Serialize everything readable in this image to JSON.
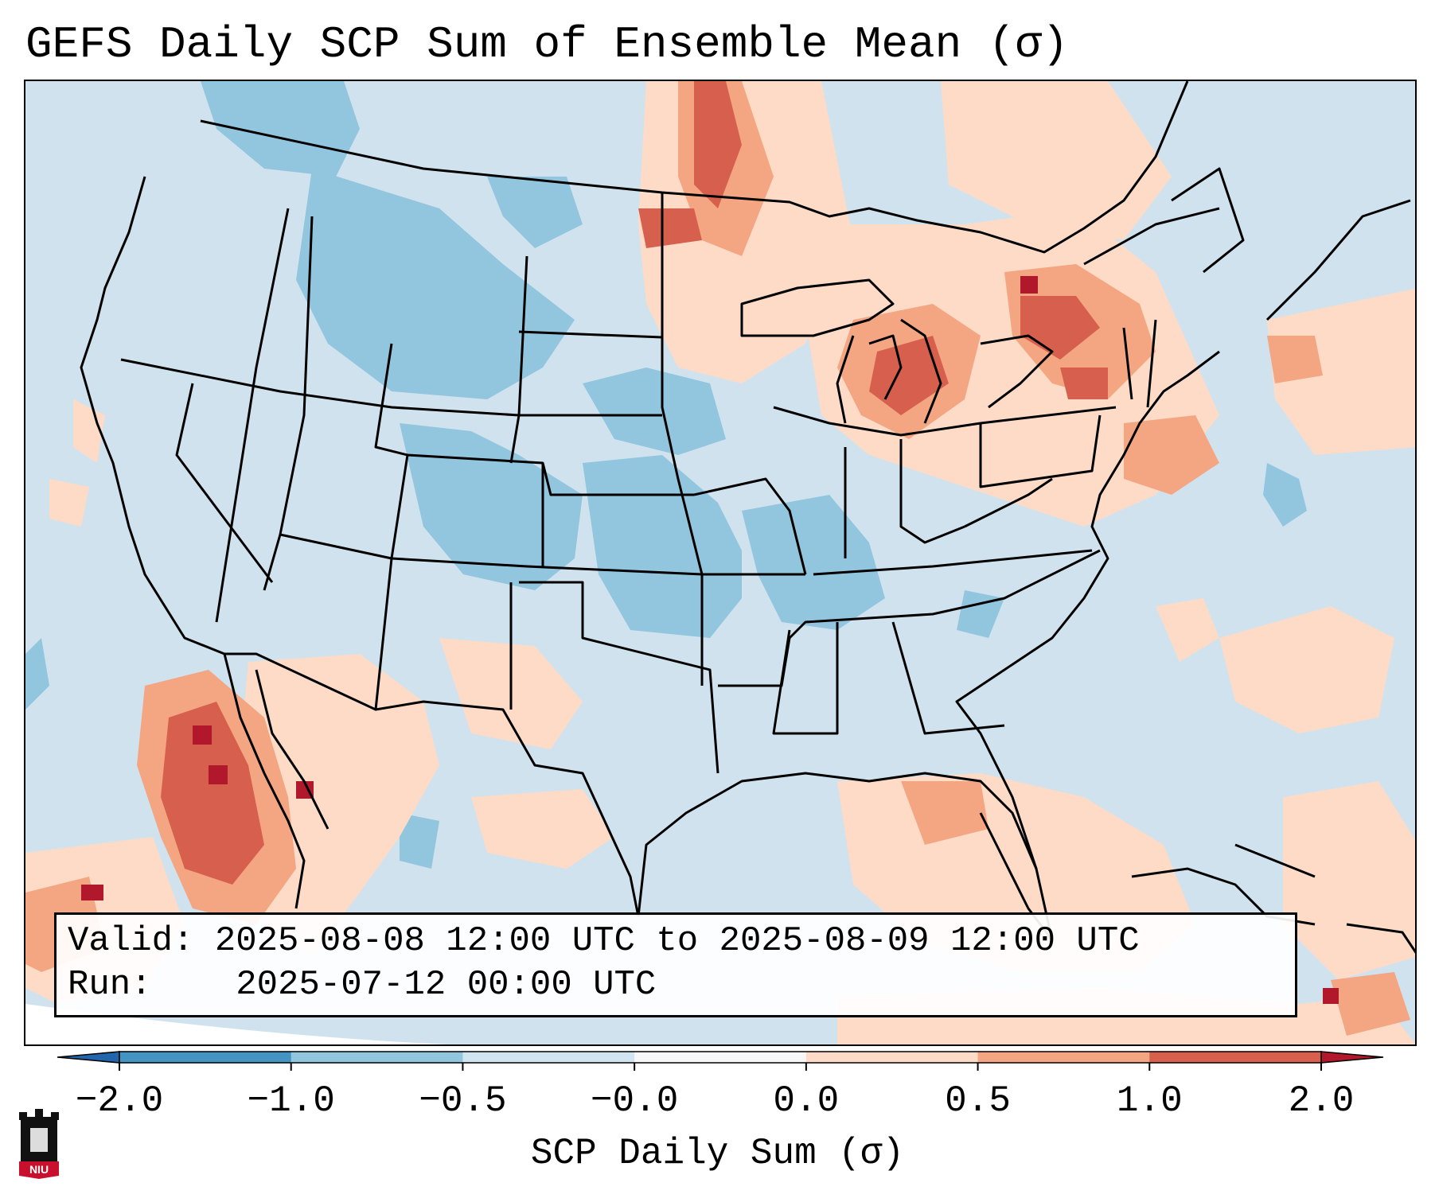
{
  "title": "GEFS Daily SCP Sum of Ensemble Mean (σ)",
  "valid": {
    "valid_label": "Valid:",
    "valid_text": "2025-08-08 12:00 UTC to 2025-08-09 12:00 UTC",
    "run_label": "Run:",
    "run_text": "2025-07-12 00:00 UTC"
  },
  "colorbar": {
    "label": "SCP Daily Sum (σ)",
    "ticks": [
      "−2.0",
      "−1.0",
      "−0.5",
      "−0.0",
      "0.0",
      "0.5",
      "1.0",
      "2.0"
    ],
    "colors": [
      "#4393c3",
      "#92c5de",
      "#d1e5f0",
      "#f7f7f7",
      "#fddbc7",
      "#f4a582",
      "#d6604d"
    ],
    "under_color": "#2166ac",
    "over_color": "#b2182b"
  },
  "map": {
    "background_color": "#d0e2ee",
    "region": "Contiguous United States"
  },
  "logo": {
    "text": "NIU"
  }
}
